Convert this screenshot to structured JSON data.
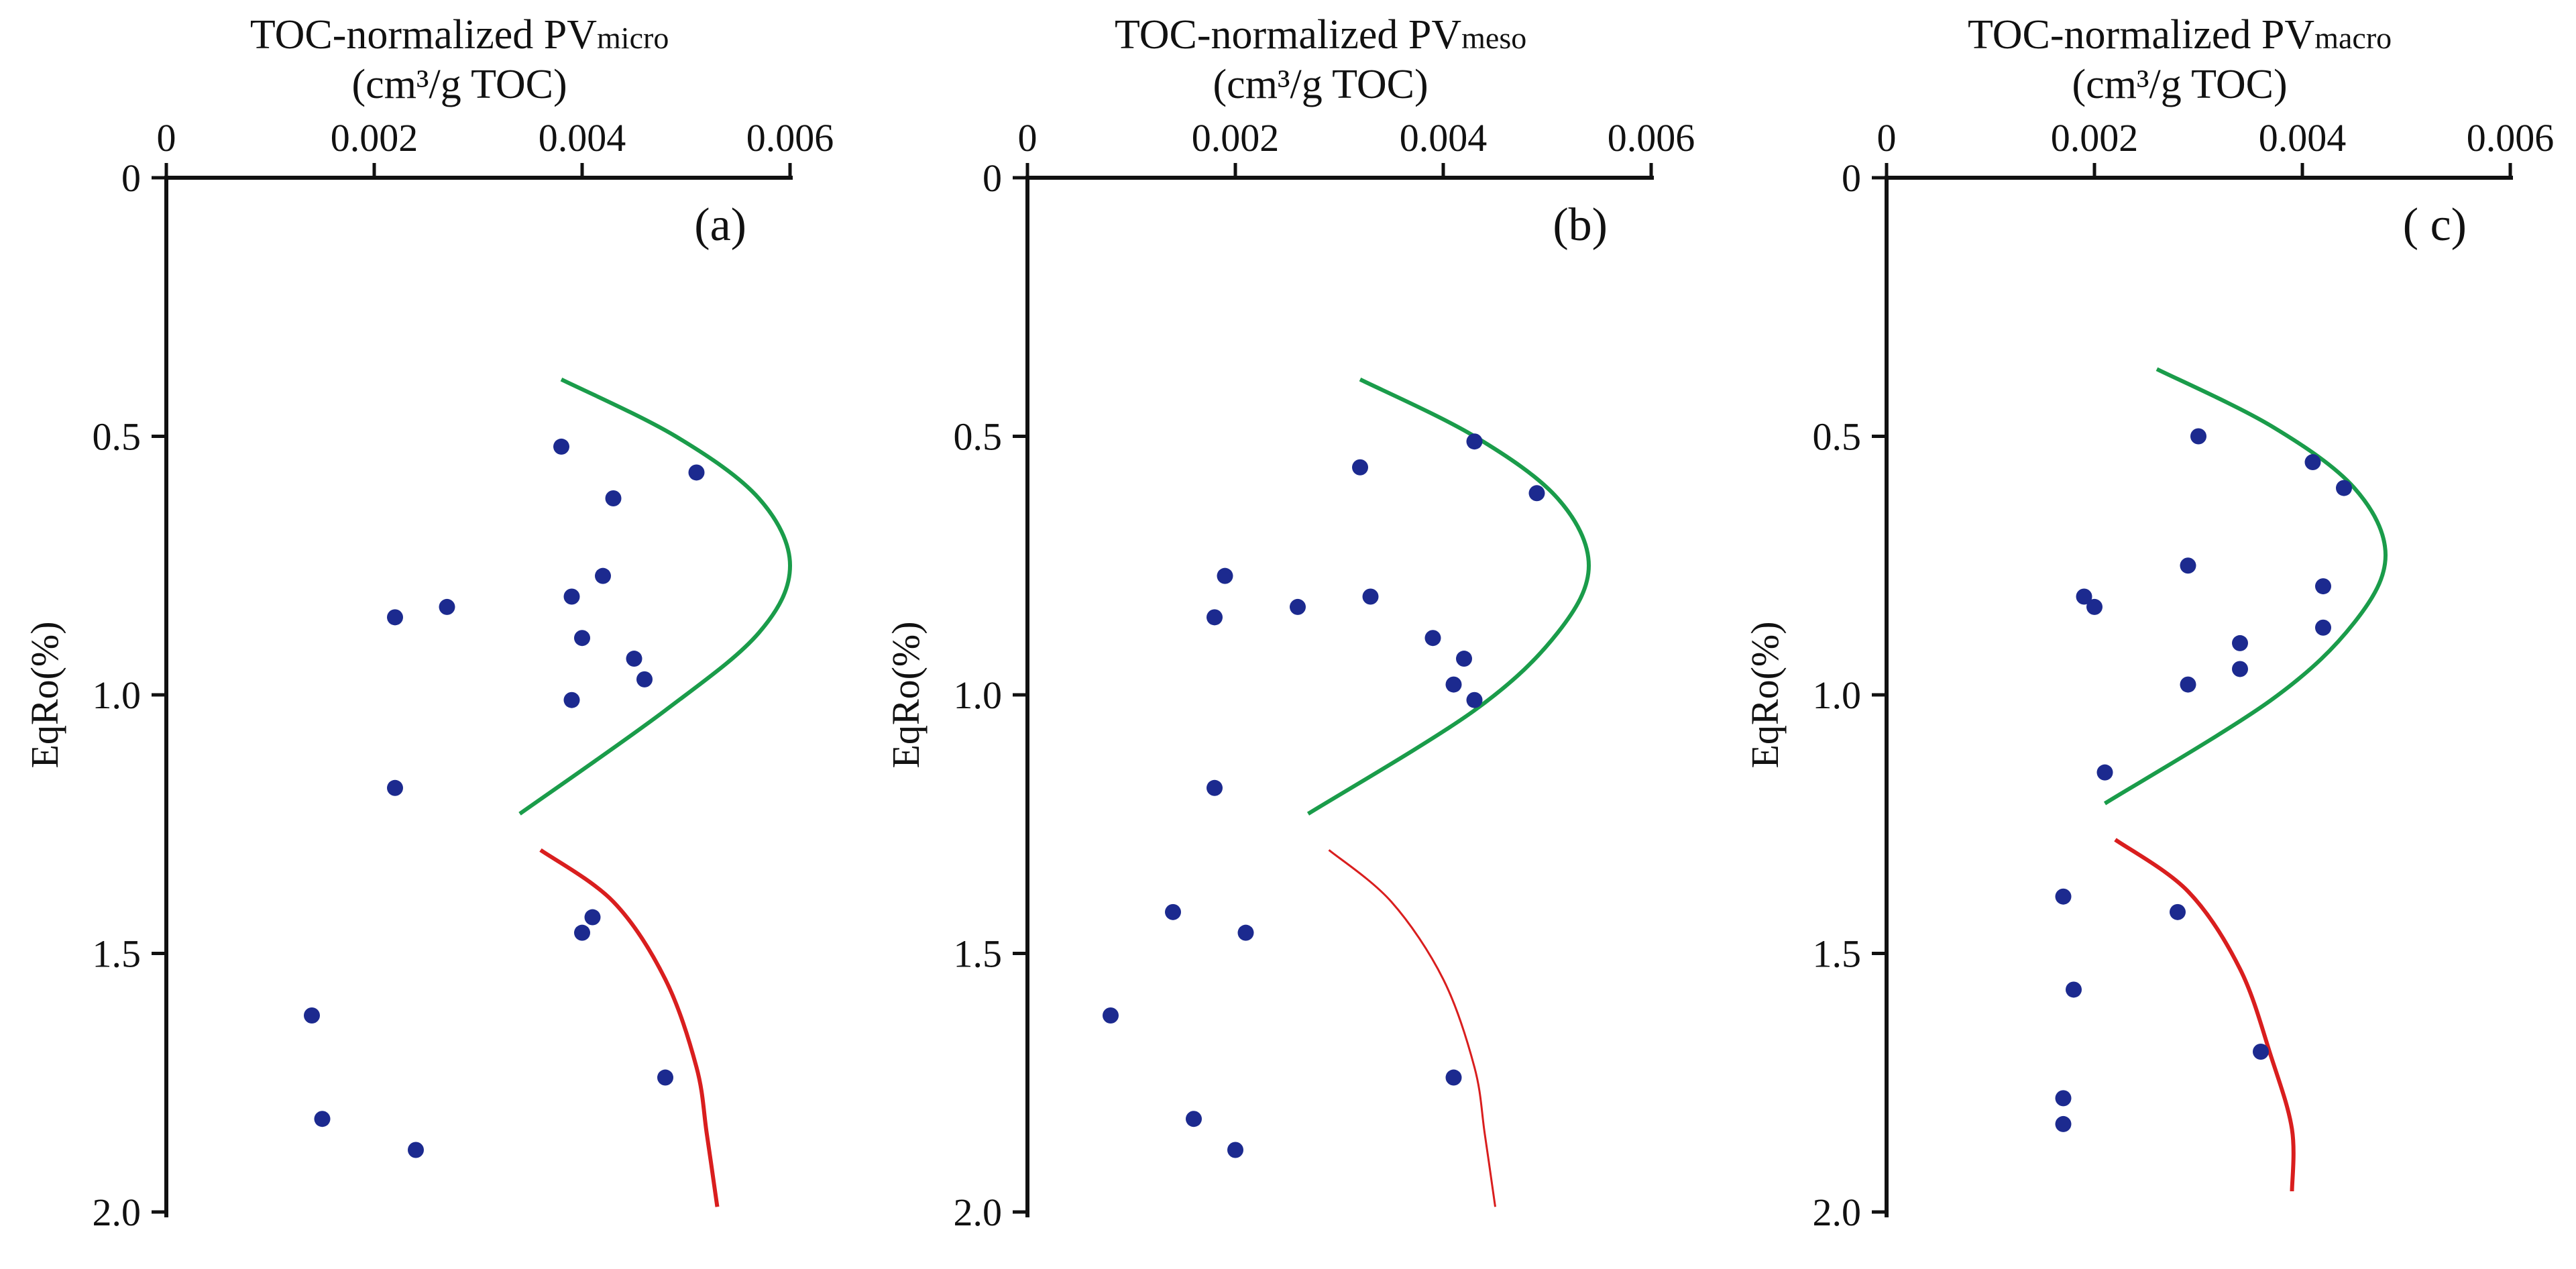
{
  "figure": {
    "y_axis_label": "EqRo(%)",
    "x_unit": "(cm³/g TOC)",
    "green_color": "#1a9c4a",
    "red_color": "#d91e1e",
    "point_color": "#1c2a8f"
  },
  "chart_data": [
    {
      "type": "scatter",
      "panel_label": "(a)",
      "title_main": "TOC-normalized PV",
      "title_sub": "micro",
      "xlabel": "TOC-normalized PVmicro (cm³/g TOC)",
      "ylabel": "EqRo(%)",
      "xlim": [
        0,
        0.006
      ],
      "ylim": [
        2.0,
        0
      ],
      "x_ticks": [
        "0",
        "0.002",
        "0.004",
        "0.006"
      ],
      "y_ticks": [
        "0",
        "0.5",
        "1.0",
        "1.5",
        "2.0"
      ],
      "points": [
        {
          "x": 0.0038,
          "y": 0.52
        },
        {
          "x": 0.0051,
          "y": 0.57
        },
        {
          "x": 0.0043,
          "y": 0.62
        },
        {
          "x": 0.0042,
          "y": 0.77
        },
        {
          "x": 0.0039,
          "y": 0.81
        },
        {
          "x": 0.0027,
          "y": 0.83
        },
        {
          "x": 0.0022,
          "y": 0.85
        },
        {
          "x": 0.004,
          "y": 0.89
        },
        {
          "x": 0.0045,
          "y": 0.93
        },
        {
          "x": 0.0046,
          "y": 0.97
        },
        {
          "x": 0.0039,
          "y": 1.01
        },
        {
          "x": 0.0022,
          "y": 1.18
        },
        {
          "x": 0.0041,
          "y": 1.43
        },
        {
          "x": 0.004,
          "y": 1.46
        },
        {
          "x": 0.0014,
          "y": 1.62
        },
        {
          "x": 0.0048,
          "y": 1.74
        },
        {
          "x": 0.0015,
          "y": 1.82
        },
        {
          "x": 0.0024,
          "y": 1.88
        }
      ],
      "green_curve": [
        {
          "x": 0.0038,
          "y": 0.39
        },
        {
          "x": 0.0049,
          "y": 0.5
        },
        {
          "x": 0.0057,
          "y": 0.62
        },
        {
          "x": 0.006,
          "y": 0.75
        },
        {
          "x": 0.0057,
          "y": 0.88
        },
        {
          "x": 0.0048,
          "y": 1.03
        },
        {
          "x": 0.0034,
          "y": 1.23
        }
      ],
      "red_curve": [
        {
          "x": 0.0036,
          "y": 1.3
        },
        {
          "x": 0.0043,
          "y": 1.4
        },
        {
          "x": 0.0048,
          "y": 1.55
        },
        {
          "x": 0.0051,
          "y": 1.72
        },
        {
          "x": 0.0052,
          "y": 1.85
        },
        {
          "x": 0.0053,
          "y": 1.99
        }
      ]
    },
    {
      "type": "scatter",
      "panel_label": "(b)",
      "title_main": "TOC-normalized PV",
      "title_sub": "meso",
      "xlabel": "TOC-normalized PVmeso (cm³/g TOC)",
      "ylabel": "EqRo(%)",
      "xlim": [
        0,
        0.006
      ],
      "ylim": [
        2.0,
        0
      ],
      "x_ticks": [
        "0",
        "0.002",
        "0.004",
        "0.006"
      ],
      "y_ticks": [
        "0",
        "0.5",
        "1.0",
        "1.5",
        "2.0"
      ],
      "points": [
        {
          "x": 0.0043,
          "y": 0.51
        },
        {
          "x": 0.0032,
          "y": 0.56
        },
        {
          "x": 0.0049,
          "y": 0.61
        },
        {
          "x": 0.0019,
          "y": 0.77
        },
        {
          "x": 0.0033,
          "y": 0.81
        },
        {
          "x": 0.0026,
          "y": 0.83
        },
        {
          "x": 0.0018,
          "y": 0.85
        },
        {
          "x": 0.0039,
          "y": 0.89
        },
        {
          "x": 0.0042,
          "y": 0.93
        },
        {
          "x": 0.0041,
          "y": 0.98
        },
        {
          "x": 0.0043,
          "y": 1.01
        },
        {
          "x": 0.0018,
          "y": 1.18
        },
        {
          "x": 0.0014,
          "y": 1.42
        },
        {
          "x": 0.0021,
          "y": 1.46
        },
        {
          "x": 0.0008,
          "y": 1.62
        },
        {
          "x": 0.0041,
          "y": 1.74
        },
        {
          "x": 0.0016,
          "y": 1.82
        },
        {
          "x": 0.002,
          "y": 1.88
        }
      ],
      "green_curve": [
        {
          "x": 0.0032,
          "y": 0.39
        },
        {
          "x": 0.0043,
          "y": 0.5
        },
        {
          "x": 0.0051,
          "y": 0.62
        },
        {
          "x": 0.0054,
          "y": 0.75
        },
        {
          "x": 0.0051,
          "y": 0.88
        },
        {
          "x": 0.0043,
          "y": 1.03
        },
        {
          "x": 0.0027,
          "y": 1.23
        }
      ],
      "red_curve": [
        {
          "x": 0.0029,
          "y": 1.3
        },
        {
          "x": 0.0035,
          "y": 1.4
        },
        {
          "x": 0.004,
          "y": 1.55
        },
        {
          "x": 0.0043,
          "y": 1.72
        },
        {
          "x": 0.0044,
          "y": 1.85
        },
        {
          "x": 0.0045,
          "y": 1.99
        }
      ]
    },
    {
      "type": "scatter",
      "panel_label": "( c)",
      "title_main": "TOC-normalized PV",
      "title_sub": "macro",
      "xlabel": "TOC-normalized PVmacro (cm³/g TOC)",
      "ylabel": "EqRo(%)",
      "xlim": [
        0,
        0.006
      ],
      "ylim": [
        2.0,
        0
      ],
      "x_ticks": [
        "0",
        "0.002",
        "0.004",
        "0.006"
      ],
      "y_ticks": [
        "0",
        "0.5",
        "1.0",
        "1.5",
        "2.0"
      ],
      "points": [
        {
          "x": 0.003,
          "y": 0.5
        },
        {
          "x": 0.0041,
          "y": 0.55
        },
        {
          "x": 0.0044,
          "y": 0.6
        },
        {
          "x": 0.0029,
          "y": 0.75
        },
        {
          "x": 0.0042,
          "y": 0.79
        },
        {
          "x": 0.0019,
          "y": 0.81
        },
        {
          "x": 0.002,
          "y": 0.83
        },
        {
          "x": 0.0042,
          "y": 0.87
        },
        {
          "x": 0.0034,
          "y": 0.9
        },
        {
          "x": 0.0034,
          "y": 0.95
        },
        {
          "x": 0.0029,
          "y": 0.98
        },
        {
          "x": 0.0021,
          "y": 1.15
        },
        {
          "x": 0.0017,
          "y": 1.39
        },
        {
          "x": 0.0028,
          "y": 1.42
        },
        {
          "x": 0.0018,
          "y": 1.57
        },
        {
          "x": 0.0036,
          "y": 1.69
        },
        {
          "x": 0.0017,
          "y": 1.78
        },
        {
          "x": 0.0017,
          "y": 1.83
        }
      ],
      "green_curve": [
        {
          "x": 0.0026,
          "y": 0.37
        },
        {
          "x": 0.0037,
          "y": 0.48
        },
        {
          "x": 0.0045,
          "y": 0.6
        },
        {
          "x": 0.0048,
          "y": 0.73
        },
        {
          "x": 0.0045,
          "y": 0.86
        },
        {
          "x": 0.0037,
          "y": 1.01
        },
        {
          "x": 0.0021,
          "y": 1.21
        }
      ],
      "red_curve": [
        {
          "x": 0.0022,
          "y": 1.28
        },
        {
          "x": 0.0029,
          "y": 1.38
        },
        {
          "x": 0.0034,
          "y": 1.53
        },
        {
          "x": 0.0037,
          "y": 1.7
        },
        {
          "x": 0.0039,
          "y": 1.84
        },
        {
          "x": 0.0039,
          "y": 1.96
        }
      ]
    }
  ]
}
